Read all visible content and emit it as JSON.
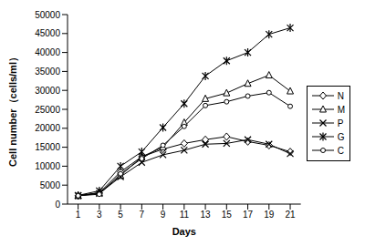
{
  "chart_data": {
    "type": "line",
    "x_label": "Days",
    "y_label": "Cell number（cells/ml）",
    "x": [
      1,
      3,
      5,
      7,
      9,
      11,
      13,
      15,
      17,
      19,
      21
    ],
    "xlim": [
      0,
      22
    ],
    "xticks": [
      1,
      3,
      5,
      7,
      9,
      11,
      13,
      15,
      17,
      19,
      21
    ],
    "ylim": [
      0,
      50000
    ],
    "yticks": [
      0,
      5000,
      10000,
      15000,
      20000,
      25000,
      30000,
      35000,
      40000,
      45000,
      50000
    ],
    "grid": false,
    "legend": "right",
    "series": [
      {
        "name": "N",
        "color": "#000000",
        "marker": "diamond",
        "values": [
          2200,
          3000,
          8500,
          12500,
          14500,
          16000,
          17000,
          17800,
          16500,
          15500,
          13800
        ]
      },
      {
        "name": "M",
        "color": "#000000",
        "marker": "triangle",
        "values": [
          2200,
          3000,
          7500,
          12500,
          15000,
          21500,
          27800,
          29300,
          31800,
          34000,
          29800
        ]
      },
      {
        "name": "P",
        "color": "#000000",
        "marker": "x",
        "values": [
          2200,
          2800,
          7200,
          11000,
          13000,
          14200,
          15800,
          16000,
          17000,
          15800,
          13300
        ]
      },
      {
        "name": "G",
        "color": "#000000",
        "marker": "star",
        "values": [
          2300,
          3500,
          10000,
          13800,
          20200,
          26500,
          33800,
          37800,
          40000,
          44800,
          46500
        ]
      },
      {
        "name": "C",
        "color": "#000000",
        "marker": "circle",
        "values": [
          2200,
          2600,
          8000,
          12000,
          15500,
          20500,
          26000,
          27000,
          28500,
          29400,
          25800
        ]
      }
    ]
  }
}
